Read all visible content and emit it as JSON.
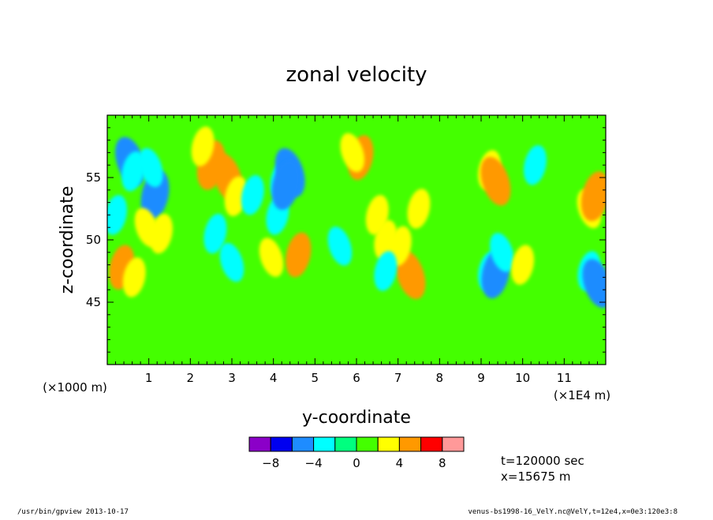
{
  "chart_data": {
    "type": "heatmap",
    "title": "zonal velocity",
    "xlabel": "y-coordinate",
    "ylabel": "z-coordinate",
    "x_units_note": "(×1E4 m)",
    "y_units_note": "(×1000 m)",
    "xlim": [
      0,
      12
    ],
    "ylim": [
      40,
      60
    ],
    "x_ticks": [
      "1",
      "2",
      "3",
      "4",
      "5",
      "6",
      "7",
      "8",
      "9",
      "10",
      "11"
    ],
    "y_ticks": [
      "45",
      "50",
      "55"
    ],
    "colorbar": {
      "levels": [
        -10,
        -8,
        -6,
        -4,
        -2,
        0,
        2,
        4,
        6,
        8,
        10
      ],
      "tick_labels": [
        "−8",
        "−4",
        "0",
        "4",
        "8"
      ],
      "colors": [
        "#8b00c8",
        "#0000f0",
        "#1e8cff",
        "#00ffff",
        "#00ff7f",
        "#44ff00",
        "#ffff00",
        "#ff9900",
        "#ff0000",
        "#ff9999"
      ]
    },
    "annotations": [
      "t=120000 sec",
      "x=15675 m"
    ],
    "features": [
      {
        "x": 0.55,
        "y": 56.3,
        "value": -5
      },
      {
        "x": 0.62,
        "y": 55.5,
        "value": -3
      },
      {
        "x": 1.15,
        "y": 53.6,
        "value": -5
      },
      {
        "x": 1.05,
        "y": 55.8,
        "value": -3
      },
      {
        "x": 0.35,
        "y": 47.8,
        "value": 4
      },
      {
        "x": 0.65,
        "y": 47.0,
        "value": 3
      },
      {
        "x": 0.95,
        "y": 51.0,
        "value": 3
      },
      {
        "x": 1.3,
        "y": 50.5,
        "value": 3
      },
      {
        "x": 2.5,
        "y": 56.0,
        "value": 5
      },
      {
        "x": 2.9,
        "y": 55.0,
        "value": 5
      },
      {
        "x": 3.1,
        "y": 53.5,
        "value": 3
      },
      {
        "x": 2.6,
        "y": 50.5,
        "value": -3
      },
      {
        "x": 3.0,
        "y": 48.2,
        "value": -3
      },
      {
        "x": 3.5,
        "y": 53.6,
        "value": -3
      },
      {
        "x": 4.2,
        "y": 54.8,
        "value": -3
      },
      {
        "x": 4.4,
        "y": 55.4,
        "value": -5
      },
      {
        "x": 4.1,
        "y": 52.0,
        "value": -3
      },
      {
        "x": 4.3,
        "y": 54.4,
        "value": -5
      },
      {
        "x": 3.95,
        "y": 48.6,
        "value": 3
      },
      {
        "x": 4.6,
        "y": 48.8,
        "value": 4
      },
      {
        "x": 6.1,
        "y": 56.6,
        "value": 4
      },
      {
        "x": 5.9,
        "y": 57.0,
        "value": 3
      },
      {
        "x": 6.5,
        "y": 52.0,
        "value": 3
      },
      {
        "x": 6.7,
        "y": 50.0,
        "value": 3
      },
      {
        "x": 7.3,
        "y": 47.2,
        "value": 5
      },
      {
        "x": 7.05,
        "y": 49.5,
        "value": 3
      },
      {
        "x": 7.5,
        "y": 52.5,
        "value": 3
      },
      {
        "x": 5.6,
        "y": 49.5,
        "value": -3
      },
      {
        "x": 6.7,
        "y": 47.5,
        "value": -3
      },
      {
        "x": 9.2,
        "y": 55.6,
        "value": 3
      },
      {
        "x": 9.35,
        "y": 54.7,
        "value": 5
      },
      {
        "x": 9.2,
        "y": 47.5,
        "value": -3
      },
      {
        "x": 9.35,
        "y": 47.3,
        "value": -5
      },
      {
        "x": 9.5,
        "y": 49.0,
        "value": -3
      },
      {
        "x": 10.0,
        "y": 48.0,
        "value": 3
      },
      {
        "x": 10.3,
        "y": 56.0,
        "value": -3
      },
      {
        "x": 11.6,
        "y": 52.5,
        "value": 3
      },
      {
        "x": 11.75,
        "y": 53.5,
        "value": 5
      },
      {
        "x": 11.6,
        "y": 47.5,
        "value": -3
      },
      {
        "x": 11.8,
        "y": 46.5,
        "value": -5
      },
      {
        "x": 2.3,
        "y": 57.5,
        "value": 3
      },
      {
        "x": 0.2,
        "y": 52.0,
        "value": -3
      }
    ]
  },
  "footer": {
    "left": "/usr/bin/gpview  2013-10-17",
    "right": "venus-bs1998-16_VelY.nc@VelY,t=12e4,x=0e3:120e3:8"
  }
}
